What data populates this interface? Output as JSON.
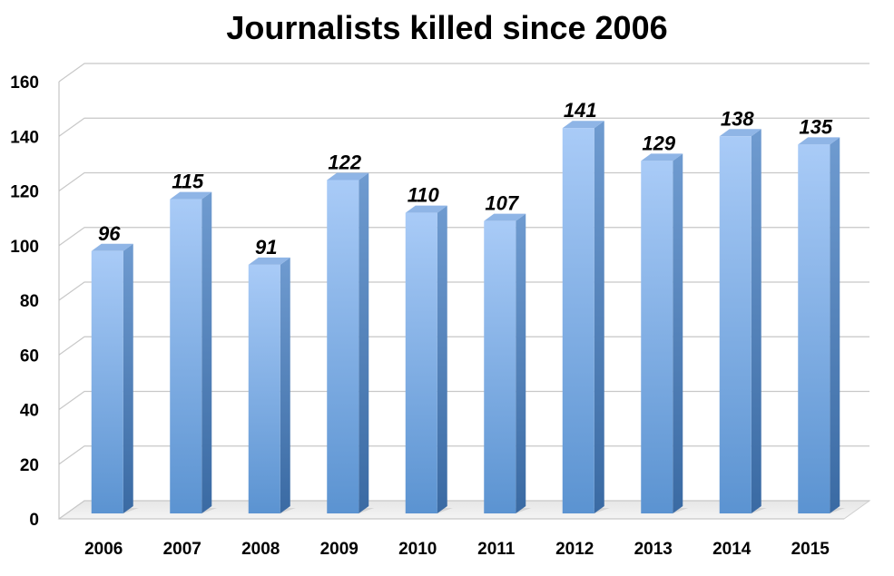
{
  "chart_data": {
    "type": "bar",
    "title": "Journalists killed since 2006",
    "categories": [
      "2006",
      "2007",
      "2008",
      "2009",
      "2010",
      "2011",
      "2012",
      "2013",
      "2014",
      "2015"
    ],
    "values": [
      96,
      115,
      91,
      122,
      110,
      107,
      141,
      129,
      138,
      135
    ],
    "data_labels": [
      "96",
      "115",
      "91",
      "122",
      "110",
      "107",
      "141",
      "129",
      "138",
      "135"
    ],
    "y_ticks": [
      "0",
      "20",
      "40",
      "60",
      "80",
      "100",
      "120",
      "140",
      "160"
    ],
    "ylim": [
      0,
      160
    ],
    "xlabel": "",
    "ylabel": "",
    "grid": true,
    "legend": "none",
    "style": "3d-column",
    "colors": {
      "bar_light": "#a9cbf7",
      "bar_dark": "#5b93d1",
      "bar_side": "#3f6fa8",
      "bar_top": "#8fb5e6",
      "grid": "#c8c8c8"
    }
  }
}
